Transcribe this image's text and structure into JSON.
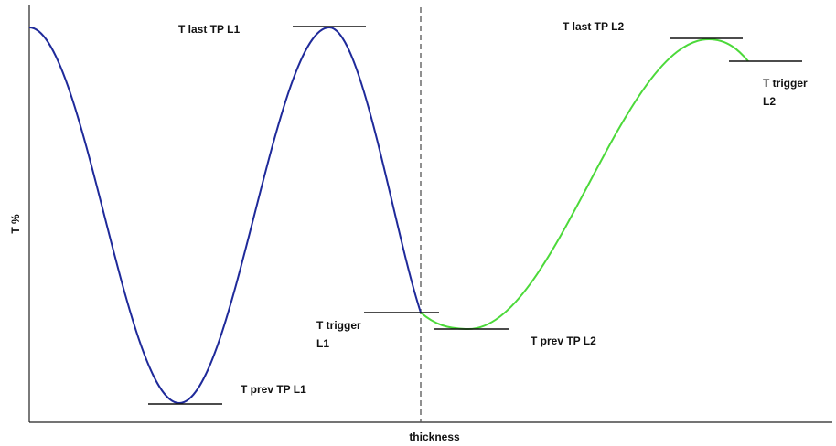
{
  "axis_labels": {
    "x": "thickness",
    "y": "T %"
  },
  "annotations": {
    "last_tp_l1": [
      "T last TP L1"
    ],
    "prev_tp_l1": [
      "T prev TP L1"
    ],
    "trigger_l1": [
      "T trigger",
      "L1"
    ],
    "prev_tp_l2": [
      "T prev TP L2"
    ],
    "last_tp_l2": [
      "T last TP L2"
    ],
    "trigger_l2": [
      "T trigger",
      "L2"
    ]
  }
}
